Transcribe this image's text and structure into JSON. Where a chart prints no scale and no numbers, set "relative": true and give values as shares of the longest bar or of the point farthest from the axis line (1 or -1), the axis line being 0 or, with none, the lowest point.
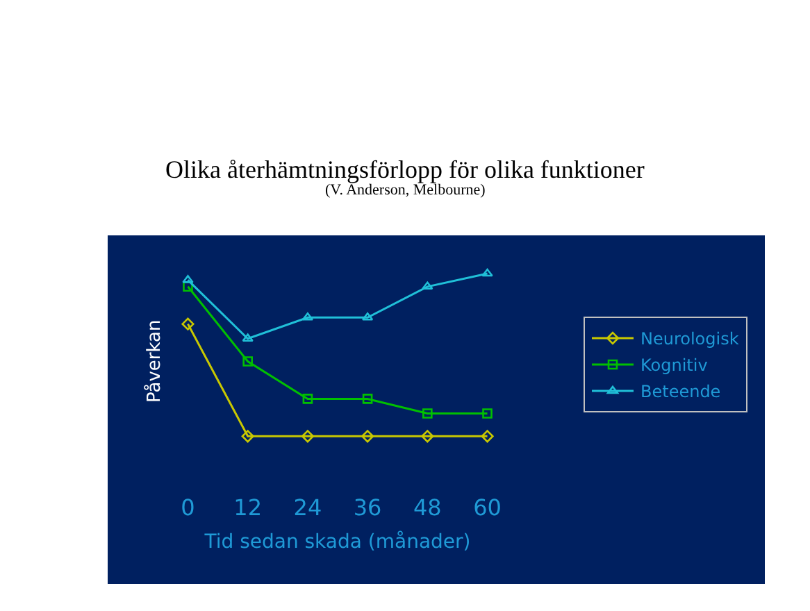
{
  "chart_data": {
    "type": "line",
    "title": "Olika återhämtningsförlopp för olika funktioner",
    "subtitle": "(V. Anderson, Melbourne)",
    "xlabel": "Tid sedan skada (månader)",
    "ylabel": "Påverkan",
    "relative": true,
    "grid": false,
    "legend": "right",
    "categories": [
      "0",
      "12",
      "24",
      "36",
      "48",
      "60"
    ],
    "series": [
      {
        "name": "Neurologisk",
        "color": "#c8c800",
        "marker": "diamond",
        "values": [
          0.69,
          0,
          0,
          0,
          0,
          0
        ]
      },
      {
        "name": "Kognitiv",
        "color": "#00c000",
        "marker": "square",
        "values": [
          0.92,
          0.46,
          0.23,
          0.23,
          0.14,
          0.14
        ]
      },
      {
        "name": "Beteende",
        "color": "#20c0d8",
        "marker": "triangle",
        "values": [
          0.96,
          0.6,
          0.73,
          0.73,
          0.92,
          1
        ]
      }
    ]
  }
}
